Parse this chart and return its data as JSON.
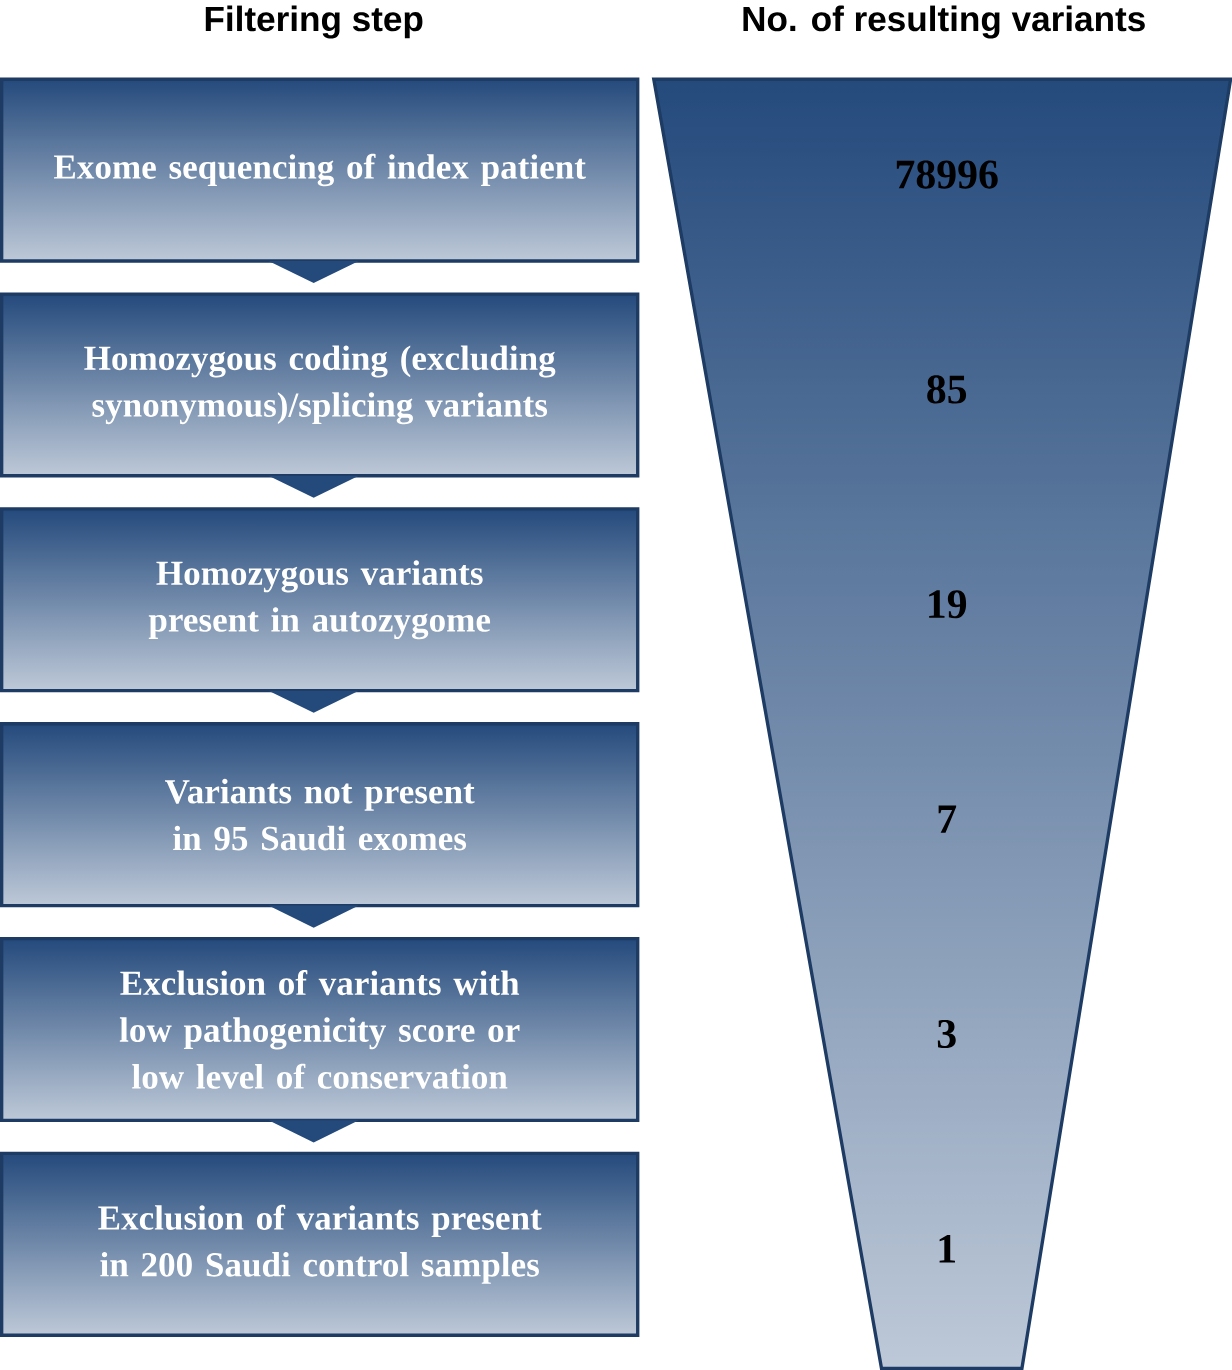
{
  "chart_data": {
    "type": "other",
    "annotations": [
      "Filtering step",
      "No. of resulting variants"
    ],
    "categories": [
      "Exome sequencing of index patient",
      "Homozygous coding (excluding synonymous)/splicing variants",
      "Homozygous variants present in autozygome",
      "Variants not present in 95 Saudi exomes",
      "Exclusion of variants with low pathogenicity score or low level of conservation",
      "Exclusion of  variants present in 200 Saudi control samples"
    ],
    "values": [
      78996,
      85,
      19,
      7,
      3,
      1
    ],
    "data_labels": true,
    "color": "#244a7c"
  }
}
